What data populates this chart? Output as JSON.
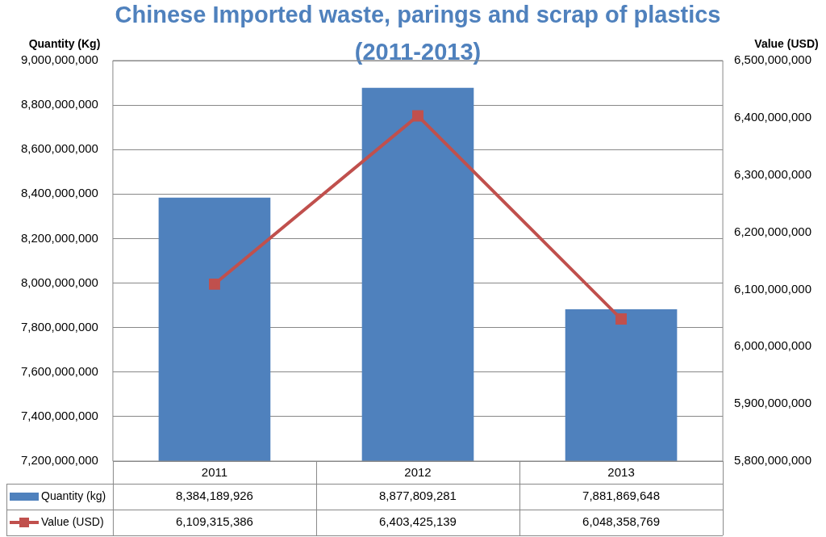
{
  "chart_data": {
    "type": "bar",
    "title": "Chinese Imported waste, parings and scrap of plastics (2011-2013)",
    "ylabel": "Quantity (Kg)",
    "y2label": "Value (USD)",
    "categories": [
      "2011",
      "2012",
      "2013"
    ],
    "series": [
      {
        "name": "Quantity (kg)",
        "color": "#4f81bd",
        "values": [
          8384189926,
          8877809281,
          7881869648
        ],
        "value_labels": [
          "8,384,189,926",
          "8,877,809,281",
          "7,881,869,648"
        ]
      },
      {
        "name": "Value (USD)",
        "type": "line",
        "axis": "y2",
        "color": "#c0504d",
        "values": [
          6109315386,
          6403425139,
          6048358769
        ],
        "value_labels": [
          "6,109,315,386",
          "6,403,425,139",
          "6,048,358,769"
        ]
      }
    ],
    "ylim": [
      7200000000,
      9000000000
    ],
    "yticks": [
      {
        "value": 7200000000,
        "label": "7,200,000,000"
      },
      {
        "value": 7400000000,
        "label": "7,400,000,000"
      },
      {
        "value": 7600000000,
        "label": "7,600,000,000"
      },
      {
        "value": 7800000000,
        "label": "7,800,000,000"
      },
      {
        "value": 8000000000,
        "label": "8,000,000,000"
      },
      {
        "value": 8200000000,
        "label": "8,200,000,000"
      },
      {
        "value": 8400000000,
        "label": "8,400,000,000"
      },
      {
        "value": 8600000000,
        "label": "8,600,000,000"
      },
      {
        "value": 8800000000,
        "label": "8,800,000,000"
      },
      {
        "value": 9000000000,
        "label": "9,000,000,000"
      }
    ],
    "y2lim": [
      5800000000,
      6500000000
    ],
    "y2ticks": [
      {
        "value": 5800000000,
        "label": "5,800,000,000"
      },
      {
        "value": 5900000000,
        "label": "5,900,000,000"
      },
      {
        "value": 6000000000,
        "label": "6,000,000,000"
      },
      {
        "value": 6100000000,
        "label": "6,100,000,000"
      },
      {
        "value": 6200000000,
        "label": "6,200,000,000"
      },
      {
        "value": 6300000000,
        "label": "6,300,000,000"
      },
      {
        "value": 6400000000,
        "label": "6,400,000,000"
      },
      {
        "value": 6500000000,
        "label": "6,500,000,000"
      }
    ],
    "grid": "y",
    "legend": "bottom",
    "marker": "square",
    "line_style": "solid"
  }
}
